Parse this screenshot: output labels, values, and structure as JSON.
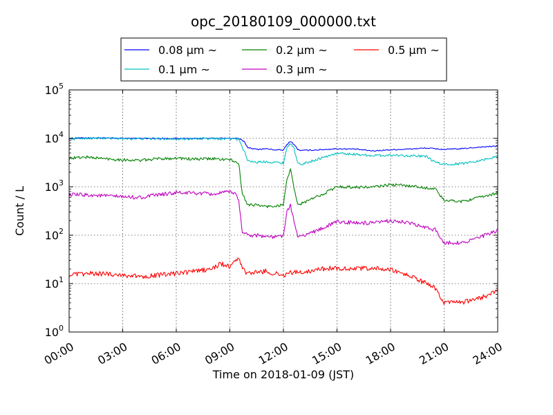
{
  "chart_data": {
    "type": "line",
    "title": "opc_20180109_000000.txt",
    "xlabel": "Time on 2018-01-09 (JST)",
    "ylabel": "Count / L",
    "x_unit": "time of day (hours)",
    "xlim": [
      0,
      24
    ],
    "ylim": [
      1,
      100000
    ],
    "yscale": "log",
    "grid": true,
    "legend_position": "top-center",
    "xticks": [
      {
        "value": 0,
        "label": "00:00"
      },
      {
        "value": 3,
        "label": "03:00"
      },
      {
        "value": 6,
        "label": "06:00"
      },
      {
        "value": 9,
        "label": "09:00"
      },
      {
        "value": 12,
        "label": "12:00"
      },
      {
        "value": 15,
        "label": "15:00"
      },
      {
        "value": 18,
        "label": "18:00"
      },
      {
        "value": 21,
        "label": "21:00"
      },
      {
        "value": 24,
        "label": "24:00"
      }
    ],
    "yticks": [
      {
        "value": 1,
        "base": "10",
        "exp": "0"
      },
      {
        "value": 10,
        "base": "10",
        "exp": "1"
      },
      {
        "value": 100,
        "base": "10",
        "exp": "2"
      },
      {
        "value": 1000,
        "base": "10",
        "exp": "3"
      },
      {
        "value": 10000,
        "base": "10",
        "exp": "4"
      },
      {
        "value": 100000,
        "base": "10",
        "exp": "5"
      }
    ],
    "series": [
      {
        "name": "0.08 μm ~",
        "color": "#0000ff",
        "noise": 0.012,
        "x": [
          0,
          0.5,
          1,
          3,
          6,
          9,
          9.5,
          9.8,
          10,
          10.5,
          11,
          11.5,
          12,
          12.2,
          12.4,
          12.6,
          12.8,
          13,
          14,
          15,
          16,
          17,
          18,
          19,
          20,
          21,
          22,
          23,
          24
        ],
        "y": [
          9800,
          10100,
          10200,
          10000,
          9900,
          10000,
          10000,
          8500,
          6500,
          5900,
          6100,
          5800,
          5700,
          7500,
          8700,
          7500,
          5900,
          5600,
          5800,
          6100,
          6000,
          5500,
          5800,
          6000,
          6300,
          5900,
          6100,
          6600,
          6900
        ]
      },
      {
        "name": "0.1 μm ~",
        "color": "#00bfbf",
        "noise": 0.025,
        "x": [
          0,
          0.5,
          1,
          3,
          6,
          9,
          9.5,
          9.8,
          10,
          10.5,
          11,
          11.5,
          12,
          12.2,
          12.4,
          12.6,
          12.8,
          13,
          14,
          15,
          16,
          17,
          18,
          19,
          20,
          20.5,
          21,
          22,
          23,
          24
        ],
        "y": [
          9700,
          10000,
          10100,
          9900,
          9800,
          9800,
          9500,
          5500,
          3500,
          3200,
          3300,
          3200,
          3100,
          6500,
          8000,
          6000,
          3000,
          2900,
          3800,
          4900,
          4700,
          4400,
          4500,
          4400,
          4200,
          3200,
          2900,
          3000,
          3500,
          4200
        ]
      },
      {
        "name": "0.2 μm ~",
        "color": "#008000",
        "noise": 0.03,
        "x": [
          0,
          1,
          2,
          3,
          4,
          5,
          6,
          7,
          8,
          9,
          9.3,
          9.5,
          9.7,
          10,
          10.5,
          11,
          11.5,
          12,
          12.2,
          12.4,
          12.6,
          12.8,
          13,
          14,
          15,
          16,
          17,
          18,
          19,
          20,
          20.5,
          21,
          22,
          23,
          24
        ],
        "y": [
          3900,
          4100,
          3800,
          3600,
          3500,
          3800,
          3900,
          3700,
          3800,
          3600,
          3300,
          3000,
          700,
          430,
          420,
          390,
          400,
          420,
          1500,
          2200,
          900,
          420,
          450,
          650,
          1000,
          980,
          980,
          1100,
          1050,
          950,
          900,
          520,
          500,
          600,
          750
        ]
      },
      {
        "name": "0.3 μm ~",
        "color": "#bf00bf",
        "noise": 0.04,
        "x": [
          0,
          1,
          2,
          3,
          4,
          5,
          6,
          7,
          8,
          9,
          9.3,
          9.5,
          9.7,
          10,
          10.5,
          11,
          11.5,
          12,
          12.2,
          12.4,
          12.6,
          12.8,
          13,
          14,
          15,
          16,
          17,
          18,
          19,
          20,
          20.5,
          21,
          22,
          23,
          24
        ],
        "y": [
          680,
          680,
          650,
          620,
          600,
          680,
          750,
          740,
          700,
          780,
          750,
          500,
          120,
          100,
          100,
          95,
          90,
          100,
          300,
          400,
          200,
          90,
          95,
          130,
          190,
          180,
          175,
          200,
          180,
          140,
          130,
          70,
          70,
          90,
          125
        ]
      },
      {
        "name": "0.5 μm ~",
        "color": "#ff0000",
        "noise": 0.05,
        "x": [
          0,
          1,
          2,
          3,
          4,
          5,
          6,
          7,
          8,
          8.5,
          9,
          9.5,
          9.7,
          10,
          10.5,
          11,
          11.5,
          12,
          12.5,
          13,
          14,
          15,
          16,
          17,
          18,
          19,
          20,
          20.5,
          21,
          22,
          23,
          24
        ],
        "y": [
          15,
          16,
          16,
          15,
          14,
          15,
          16,
          18,
          20,
          26,
          22,
          35,
          20,
          16,
          17,
          18,
          16,
          15,
          17,
          17,
          20,
          21,
          20,
          21,
          19,
          15,
          10,
          8,
          4,
          4,
          5,
          7
        ]
      }
    ]
  }
}
